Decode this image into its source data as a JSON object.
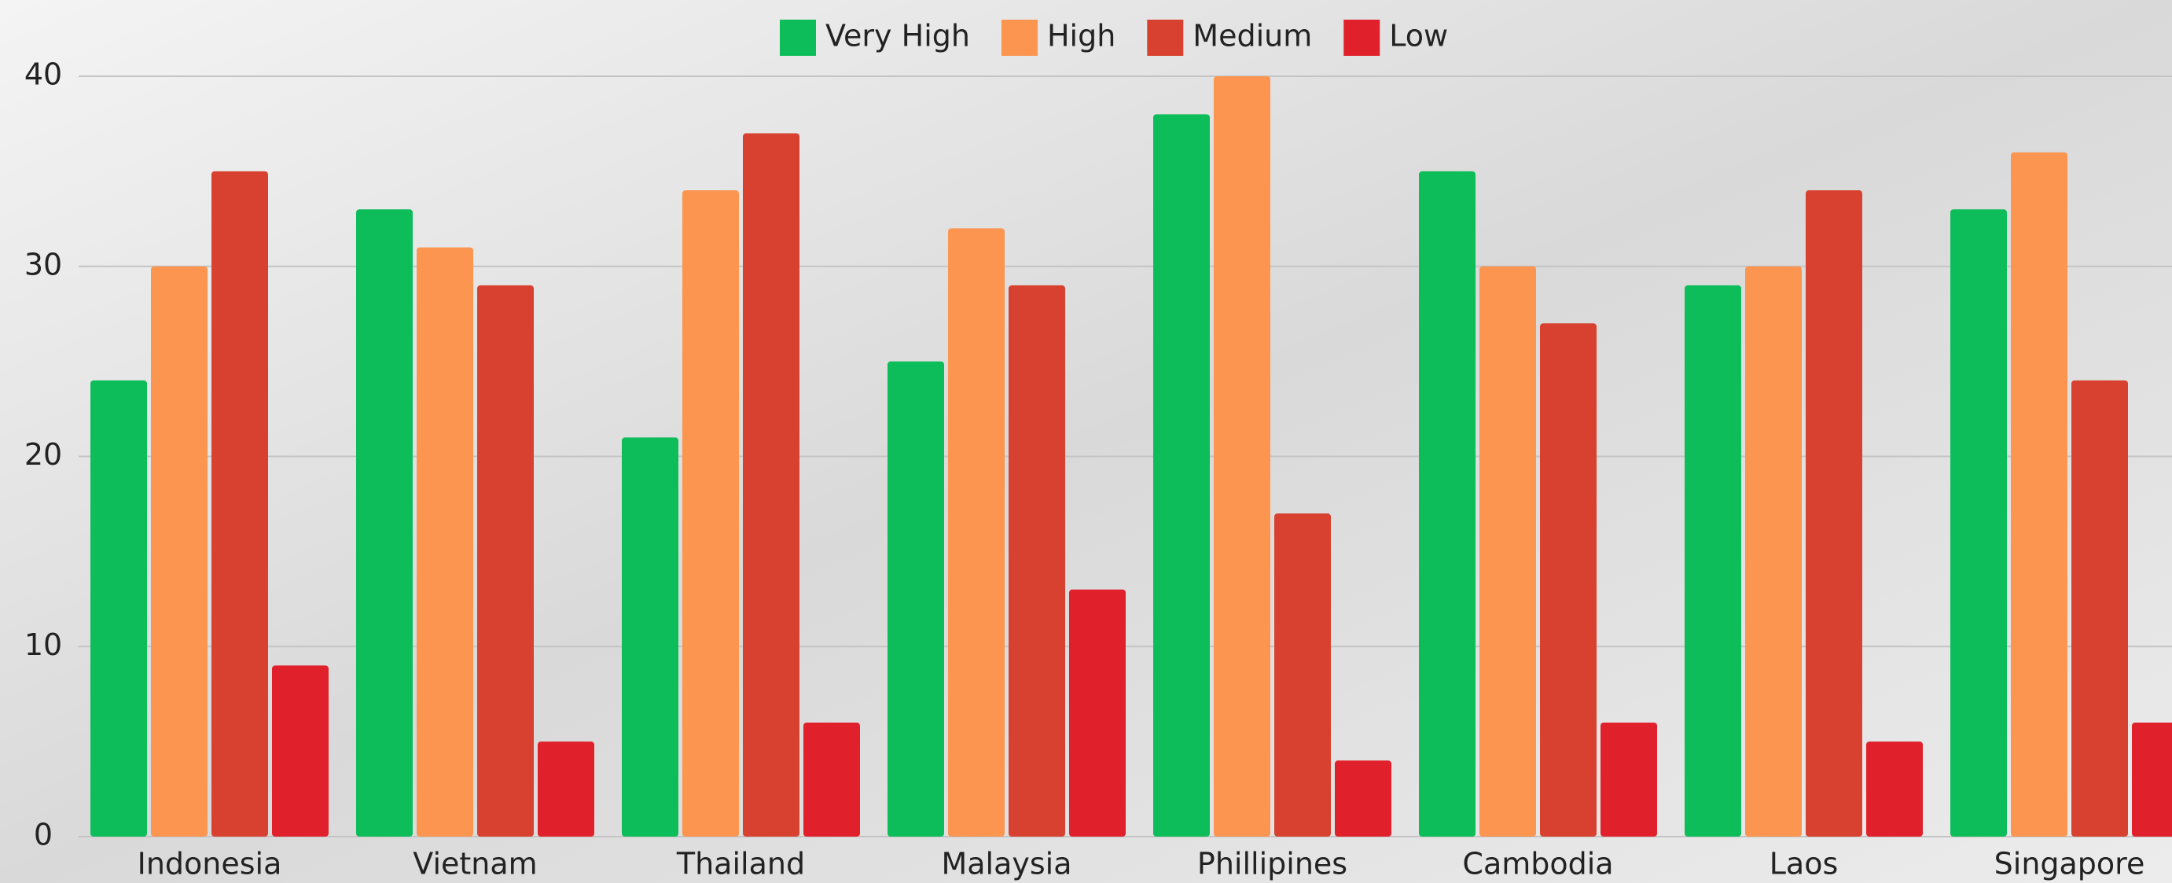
{
  "chart_data": {
    "type": "bar",
    "categories": [
      "Indonesia",
      "Vietnam",
      "Thailand",
      "Malaysia",
      "Phillipines",
      "Cambodia",
      "Laos",
      "Singapore"
    ],
    "series": [
      {
        "name": "Very High",
        "color": "#0dbd5a",
        "values": [
          24,
          33,
          21,
          25,
          38,
          35,
          29,
          33
        ]
      },
      {
        "name": "High",
        "color": "#fb9550",
        "values": [
          30,
          31,
          34,
          32,
          40,
          30,
          30,
          36
        ]
      },
      {
        "name": "Medium",
        "color": "#d8412f",
        "values": [
          35,
          29,
          37,
          29,
          17,
          27,
          34,
          24
        ]
      },
      {
        "name": "Low",
        "color": "#e0212b",
        "values": [
          9,
          5,
          6,
          13,
          4,
          6,
          5,
          6
        ]
      }
    ],
    "ylim": [
      0,
      40
    ],
    "yticks": [
      0,
      10,
      20,
      30,
      40
    ],
    "grid": true,
    "legend": "top"
  }
}
